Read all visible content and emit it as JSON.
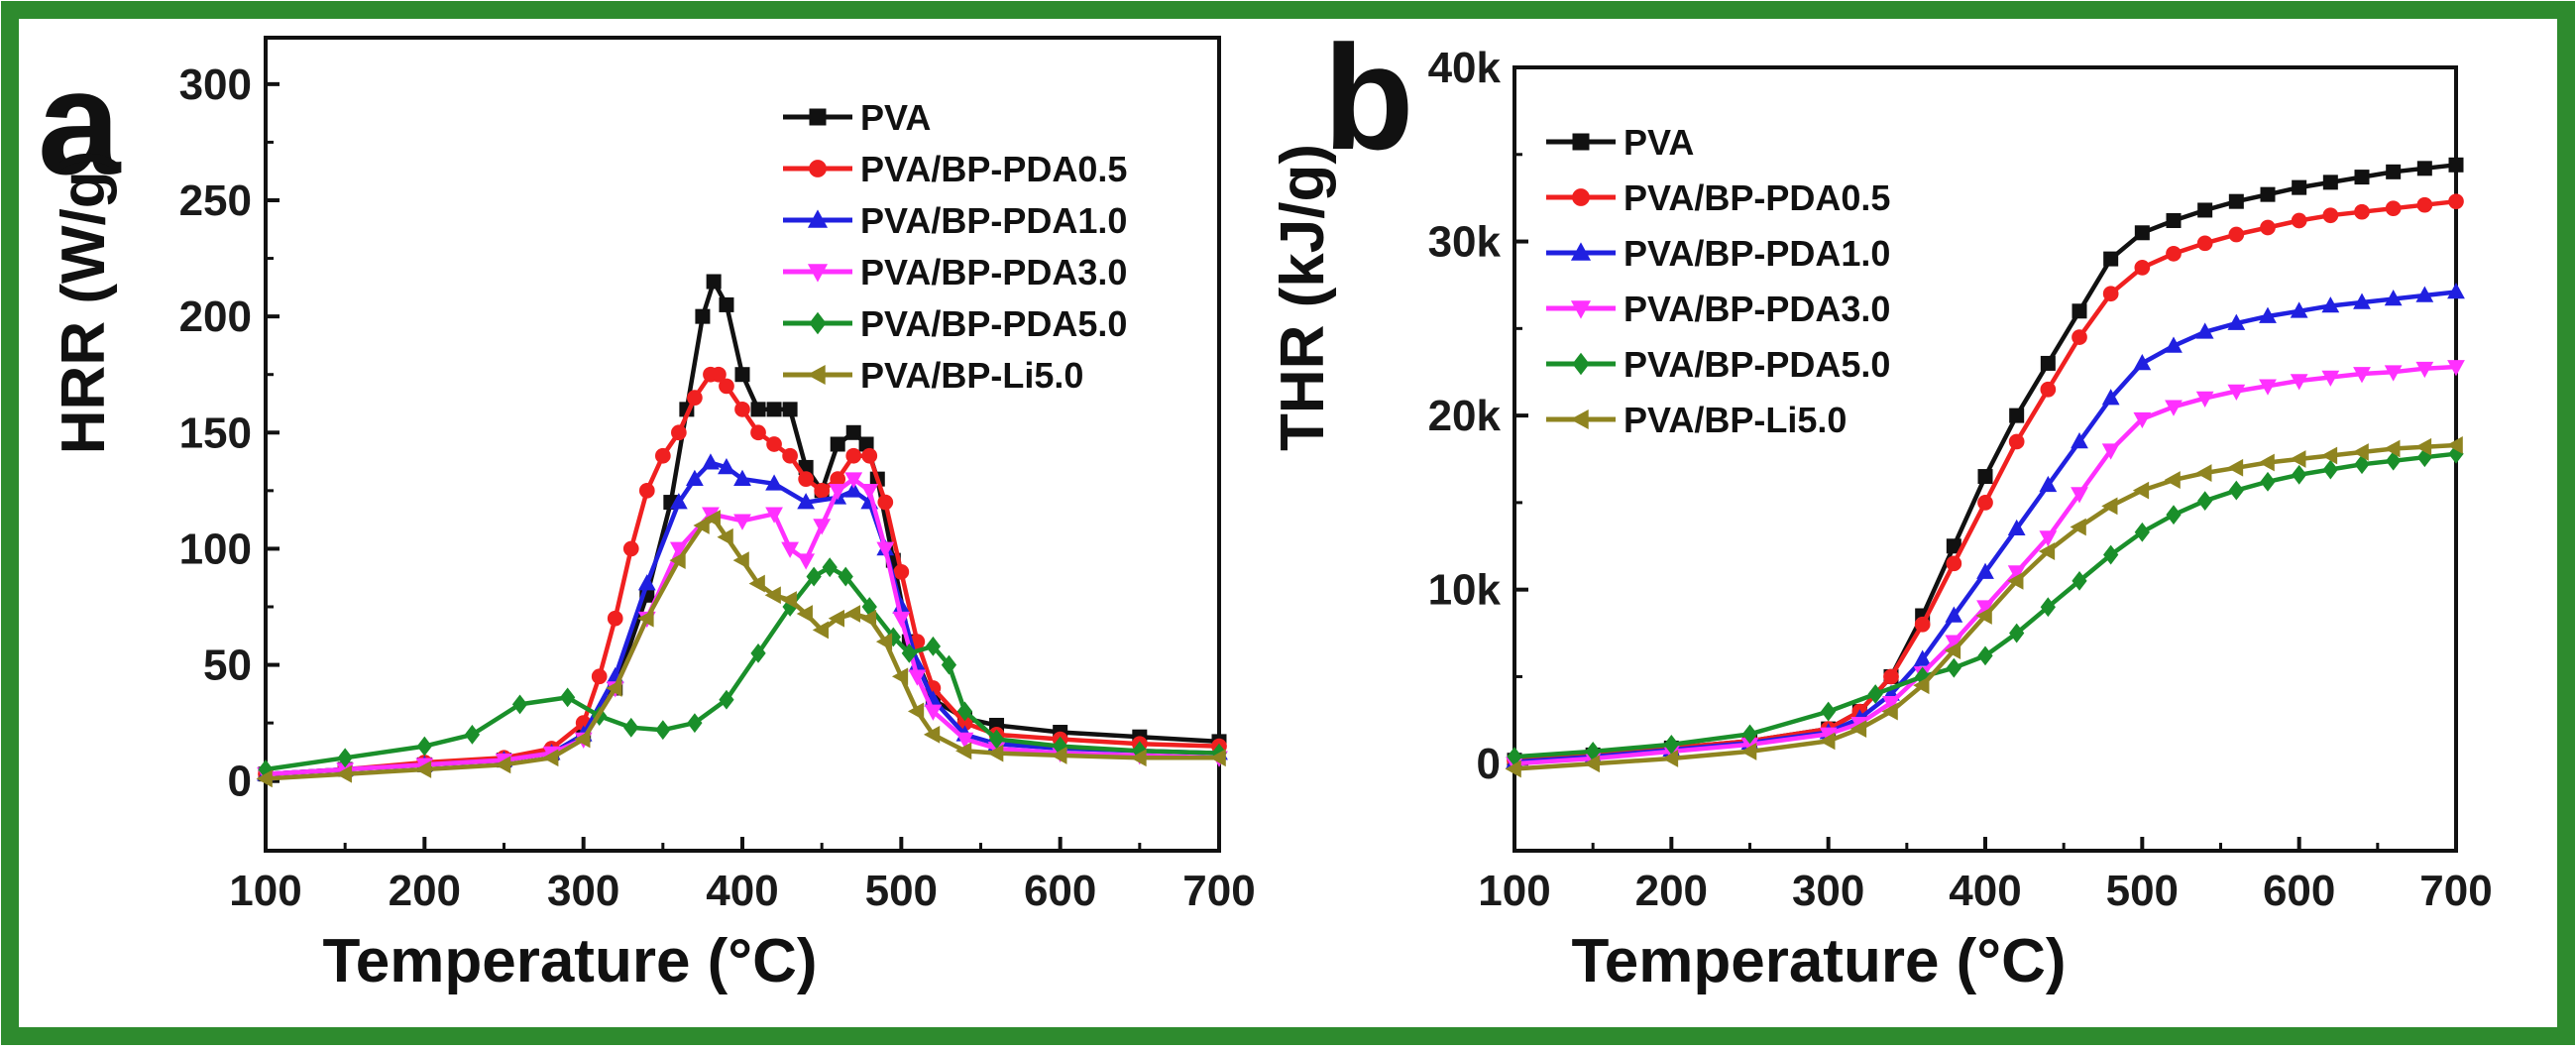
{
  "colors": {
    "border": "#2e8b2e",
    "PVA": "#111111",
    "PVA/BP-PDA0.5": "#f02020",
    "PVA/BP-PDA1.0": "#2020e0",
    "PVA/BP-PDA3.0": "#ff30ff",
    "PVA/BP-PDA5.0": "#1a8f2a",
    "PVA/BP-Li5.0": "#8f8420"
  },
  "chart_data": [
    {
      "type": "line",
      "panel_label": "a",
      "title": "",
      "xlabel": "Temperature (°C)",
      "ylabel": "HRR (W/g)",
      "xlim": [
        100,
        700
      ],
      "ylim": [
        -30,
        320
      ],
      "x_ticks": [
        "100",
        "200",
        "300",
        "400",
        "500",
        "600",
        "700"
      ],
      "y_ticks": [
        "0",
        "50",
        "100",
        "150",
        "200",
        "250",
        "300"
      ],
      "legend_position": "top-right",
      "series": [
        {
          "name": "PVA",
          "marker": "square",
          "x": [
            100,
            150,
            200,
            250,
            280,
            300,
            320,
            340,
            355,
            365,
            375,
            382,
            390,
            400,
            410,
            420,
            430,
            440,
            450,
            460,
            470,
            478,
            485,
            495,
            505,
            520,
            540,
            560,
            600,
            650,
            700
          ],
          "y": [
            3,
            5,
            7,
            9,
            12,
            20,
            40,
            80,
            120,
            160,
            200,
            215,
            205,
            175,
            160,
            160,
            160,
            135,
            125,
            145,
            150,
            145,
            130,
            95,
            60,
            35,
            27,
            24,
            21,
            19,
            17
          ]
        },
        {
          "name": "PVA/BP-PDA0.5",
          "marker": "circle",
          "x": [
            100,
            150,
            200,
            250,
            280,
            300,
            310,
            320,
            330,
            340,
            350,
            360,
            370,
            380,
            385,
            390,
            400,
            410,
            420,
            430,
            440,
            450,
            460,
            470,
            480,
            490,
            500,
            510,
            520,
            540,
            560,
            600,
            650,
            700
          ],
          "y": [
            3,
            5,
            8,
            10,
            14,
            25,
            45,
            70,
            100,
            125,
            140,
            150,
            165,
            175,
            175,
            170,
            160,
            150,
            145,
            140,
            130,
            125,
            130,
            140,
            140,
            120,
            90,
            60,
            40,
            25,
            20,
            18,
            16,
            15
          ]
        },
        {
          "name": "PVA/BP-PDA1.0",
          "marker": "triangle-up",
          "x": [
            100,
            150,
            200,
            250,
            280,
            300,
            320,
            340,
            360,
            370,
            380,
            390,
            400,
            420,
            440,
            460,
            470,
            480,
            490,
            500,
            510,
            520,
            540,
            560,
            600,
            650,
            700
          ],
          "y": [
            3,
            5,
            7,
            9,
            12,
            20,
            45,
            85,
            120,
            130,
            137,
            135,
            130,
            128,
            120,
            122,
            125,
            120,
            100,
            75,
            50,
            35,
            20,
            16,
            14,
            13,
            12
          ]
        },
        {
          "name": "PVA/BP-PDA3.0",
          "marker": "triangle-down",
          "x": [
            100,
            150,
            200,
            250,
            280,
            300,
            320,
            340,
            360,
            380,
            400,
            420,
            430,
            440,
            450,
            460,
            470,
            480,
            490,
            500,
            510,
            520,
            540,
            560,
            600,
            650,
            700
          ],
          "y": [
            3,
            5,
            7,
            9,
            12,
            18,
            40,
            70,
            100,
            115,
            112,
            115,
            100,
            95,
            110,
            125,
            130,
            125,
            100,
            70,
            45,
            30,
            18,
            14,
            12,
            11,
            10
          ]
        },
        {
          "name": "PVA/BP-PDA5.0",
          "marker": "diamond",
          "x": [
            100,
            150,
            200,
            230,
            260,
            290,
            310,
            330,
            350,
            370,
            390,
            410,
            430,
            445,
            455,
            465,
            480,
            495,
            505,
            520,
            530,
            540,
            560,
            600,
            650,
            700
          ],
          "y": [
            5,
            10,
            15,
            20,
            33,
            36,
            28,
            23,
            22,
            25,
            35,
            55,
            75,
            88,
            92,
            88,
            75,
            62,
            55,
            58,
            50,
            30,
            18,
            15,
            13,
            12
          ]
        },
        {
          "name": "PVA/BP-Li5.0",
          "marker": "triangle-left",
          "x": [
            100,
            150,
            200,
            250,
            280,
            300,
            320,
            340,
            360,
            375,
            382,
            390,
            400,
            410,
            420,
            430,
            440,
            450,
            460,
            470,
            480,
            490,
            500,
            510,
            520,
            540,
            560,
            600,
            650,
            700
          ],
          "y": [
            1,
            3,
            5,
            7,
            10,
            18,
            40,
            70,
            95,
            110,
            113,
            105,
            95,
            85,
            80,
            78,
            72,
            65,
            70,
            72,
            70,
            60,
            45,
            30,
            20,
            13,
            12,
            11,
            10,
            10
          ]
        }
      ]
    },
    {
      "type": "line",
      "panel_label": "b",
      "title": "",
      "xlabel": "Temperature (°C)",
      "ylabel": "THR (kJ/g)",
      "xlim": [
        100,
        700
      ],
      "ylim": [
        -5000,
        40000
      ],
      "x_ticks": [
        "100",
        "200",
        "300",
        "400",
        "500",
        "600",
        "700"
      ],
      "y_ticks": [
        "0",
        "10k",
        "20k",
        "30k",
        "40k"
      ],
      "legend_position": "top-left",
      "series": [
        {
          "name": "PVA",
          "marker": "square",
          "x": [
            100,
            150,
            200,
            250,
            300,
            320,
            340,
            360,
            380,
            400,
            420,
            440,
            460,
            480,
            500,
            520,
            540,
            560,
            580,
            600,
            620,
            640,
            660,
            680,
            700
          ],
          "y": [
            200,
            500,
            900,
            1300,
            2000,
            3000,
            5000,
            8500,
            12500,
            16500,
            20000,
            23000,
            26000,
            29000,
            30500,
            31200,
            31800,
            32300,
            32700,
            33100,
            33400,
            33700,
            34000,
            34200,
            34400
          ]
        },
        {
          "name": "PVA/BP-PDA0.5",
          "marker": "circle",
          "x": [
            100,
            150,
            200,
            250,
            300,
            320,
            340,
            360,
            380,
            400,
            420,
            440,
            460,
            480,
            500,
            520,
            540,
            560,
            580,
            600,
            620,
            640,
            660,
            680,
            700
          ],
          "y": [
            200,
            500,
            900,
            1300,
            2000,
            3000,
            5000,
            8000,
            11500,
            15000,
            18500,
            21500,
            24500,
            27000,
            28500,
            29300,
            29900,
            30400,
            30800,
            31200,
            31500,
            31700,
            31900,
            32100,
            32300
          ]
        },
        {
          "name": "PVA/BP-PDA1.0",
          "marker": "triangle-up",
          "x": [
            100,
            150,
            200,
            250,
            300,
            320,
            340,
            360,
            380,
            400,
            420,
            440,
            460,
            480,
            500,
            520,
            540,
            560,
            580,
            600,
            620,
            640,
            660,
            680,
            700
          ],
          "y": [
            100,
            400,
            800,
            1200,
            1800,
            2600,
            4000,
            6000,
            8500,
            11000,
            13500,
            16000,
            18500,
            21000,
            23000,
            24000,
            24800,
            25300,
            25700,
            26000,
            26300,
            26500,
            26700,
            26900,
            27100
          ]
        },
        {
          "name": "PVA/BP-PDA3.0",
          "marker": "triangle-down",
          "x": [
            100,
            150,
            200,
            250,
            300,
            320,
            340,
            360,
            380,
            400,
            420,
            440,
            460,
            480,
            500,
            520,
            540,
            560,
            580,
            600,
            620,
            640,
            660,
            680,
            700
          ],
          "y": [
            0,
            300,
            700,
            1100,
            1700,
            2300,
            3500,
            5200,
            7000,
            9000,
            11000,
            13000,
            15500,
            18000,
            19800,
            20500,
            21000,
            21400,
            21700,
            22000,
            22200,
            22400,
            22500,
            22700,
            22800
          ]
        },
        {
          "name": "PVA/BP-PDA5.0",
          "marker": "diamond",
          "x": [
            100,
            150,
            200,
            250,
            300,
            330,
            360,
            380,
            400,
            420,
            440,
            460,
            480,
            500,
            520,
            540,
            560,
            580,
            600,
            620,
            640,
            660,
            680,
            700
          ],
          "y": [
            400,
            700,
            1100,
            1700,
            3000,
            4000,
            5000,
            5500,
            6200,
            7500,
            9000,
            10500,
            12000,
            13300,
            14300,
            15100,
            15700,
            16200,
            16600,
            16900,
            17200,
            17400,
            17600,
            17800
          ]
        },
        {
          "name": "PVA/BP-Li5.0",
          "marker": "triangle-left",
          "x": [
            100,
            150,
            200,
            250,
            300,
            320,
            340,
            360,
            380,
            400,
            420,
            440,
            460,
            480,
            500,
            520,
            540,
            560,
            580,
            600,
            620,
            640,
            660,
            680,
            700
          ],
          "y": [
            -300,
            0,
            300,
            700,
            1300,
            2000,
            3000,
            4500,
            6500,
            8500,
            10500,
            12200,
            13600,
            14800,
            15700,
            16300,
            16700,
            17000,
            17300,
            17500,
            17700,
            17900,
            18100,
            18200,
            18300
          ]
        }
      ]
    }
  ]
}
